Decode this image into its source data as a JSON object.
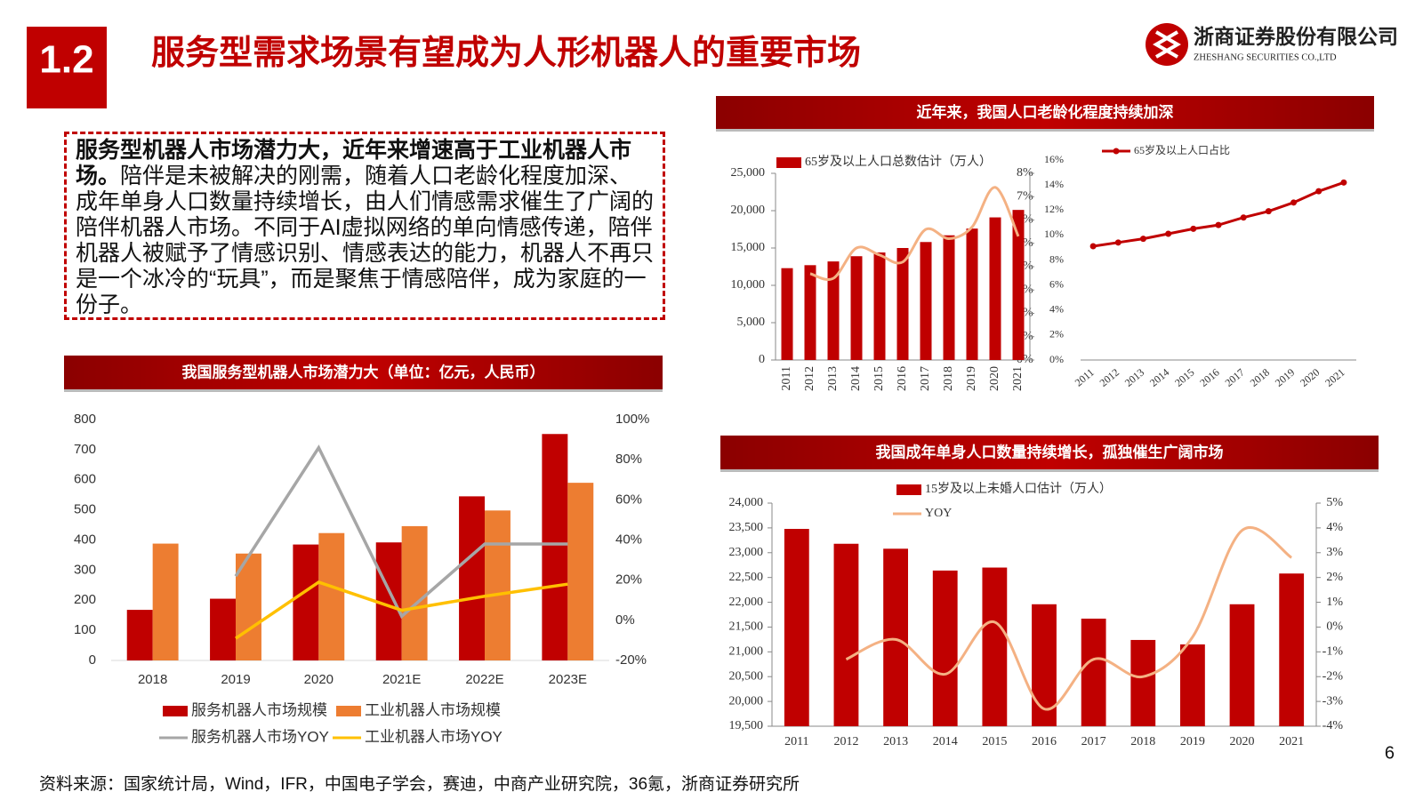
{
  "header": {
    "section": "1.2",
    "title": "服务型需求场景有望成为人形机器人的重要市场",
    "company": "浙商证券股份有限公司",
    "company_en": "ZHESHANG SECURITIES CO.,LTD"
  },
  "text_box": {
    "bold": "服务型机器人市场潜力大，近年来增速高于工业机器人市场。",
    "body": "陪伴是未被解决的刚需，随着人口老龄化程度加深、成年单身人口数量持续增长，由人们情感需求催生了广阔的陪伴机器人市场。不同于AI虚拟网络的单向情感传递，陪伴机器人被赋予了情感识别、情感表达的能力，机器人不再只是一个冰冷的“玩具”，而是聚焦于情感陪伴，成为家庭的一份子。"
  },
  "footer": {
    "source": "资料来源：国家统计局，Wind，IFR，中国电子学会，赛迪，中商产业研究院，36氪，浙商证券研究所",
    "page": "6"
  },
  "chart_data": [
    {
      "type": "combo",
      "title": "我国服务型机器人市场潜力大（单位：亿元，人民币）",
      "categories": [
        "2018",
        "2019",
        "2020",
        "2021E",
        "2022E",
        "2023E"
      ],
      "series": [
        {
          "name": "服务机器人市场规模",
          "type": "bar",
          "color": "#c00000",
          "values": [
            168,
            205,
            385,
            392,
            545,
            752
          ]
        },
        {
          "name": "工业机器人市场规模",
          "type": "bar",
          "color": "#ed7d31",
          "values": [
            388,
            355,
            423,
            446,
            498,
            590
          ]
        },
        {
          "name": "服务机器人市场YOY",
          "type": "line",
          "axis": "y2",
          "color": "#a6a6a6",
          "values": [
            null,
            22,
            86,
            2,
            38,
            38
          ]
        },
        {
          "name": "工业机器人市场YOY",
          "type": "line",
          "axis": "y2",
          "color": "#ffc000",
          "values": [
            null,
            -9,
            19,
            5,
            12,
            18
          ]
        }
      ],
      "ylim": [
        0,
        800
      ],
      "yticks": [
        0,
        100,
        200,
        300,
        400,
        500,
        600,
        700,
        800
      ],
      "y2lim": [
        -20,
        100
      ],
      "y2ticks": [
        {
          "value": -20,
          "label": "-20%"
        },
        {
          "value": 0,
          "label": "0%"
        },
        {
          "value": 20,
          "label": "20%"
        },
        {
          "value": 40,
          "label": "40%"
        },
        {
          "value": 60,
          "label": "60%"
        },
        {
          "value": 80,
          "label": "80%"
        },
        {
          "value": 100,
          "label": "100%"
        }
      ],
      "legend": "bottom",
      "smooth": false
    },
    {
      "type": "combo",
      "title": "近年来，我国人口老龄化程度持续加深",
      "categories": [
        "2011",
        "2012",
        "2013",
        "2014",
        "2015",
        "2016",
        "2017",
        "2018",
        "2019",
        "2020",
        "2021"
      ],
      "series": [
        {
          "name": "65岁及以上人口总数估计（万人）",
          "type": "bar",
          "color": "#c00000",
          "values": [
            12300,
            12700,
            13200,
            13900,
            14400,
            15000,
            15800,
            16700,
            17600,
            19100,
            20100
          ]
        },
        {
          "type": "line",
          "axis": "y2",
          "color": "#f4b183",
          "values": [
            null,
            3.7,
            3.5,
            4.8,
            4.5,
            4.2,
            5.6,
            5.2,
            5.7,
            7.4,
            5.3
          ]
        }
      ],
      "ylim": [
        0,
        25000
      ],
      "yticks": [
        0,
        {
          "value": 5000,
          "label": "5,000"
        },
        {
          "value": 10000,
          "label": "10,000"
        },
        {
          "value": 15000,
          "label": "15,000"
        },
        {
          "value": 20000,
          "label": "20,000"
        },
        {
          "value": 25000,
          "label": "25,000"
        }
      ],
      "y2lim": [
        0,
        8
      ],
      "y2ticks": [
        {
          "value": 0,
          "label": "0%"
        },
        {
          "value": 1,
          "label": "1%"
        },
        {
          "value": 2,
          "label": "2%"
        },
        {
          "value": 3,
          "label": "3%"
        },
        {
          "value": 4,
          "label": "4%"
        },
        {
          "value": 5,
          "label": "5%"
        },
        {
          "value": 6,
          "label": "6%"
        },
        {
          "value": 7,
          "label": "7%"
        },
        {
          "value": 8,
          "label": "8%"
        }
      ],
      "legend": "upper left",
      "smooth": true
    },
    {
      "type": "line",
      "categories": [
        "2011",
        "2012",
        "2013",
        "2014",
        "2015",
        "2016",
        "2017",
        "2018",
        "2019",
        "2020",
        "2021"
      ],
      "series": [
        {
          "name": "65岁及以上人口占比",
          "type": "line",
          "color": "#c00000",
          "values": [
            9.1,
            9.4,
            9.7,
            10.1,
            10.5,
            10.8,
            11.4,
            11.9,
            12.6,
            13.5,
            14.2
          ]
        }
      ],
      "ylim": [
        0,
        16
      ],
      "yticks": [
        {
          "value": 0,
          "label": "0%"
        },
        {
          "value": 2,
          "label": "2%"
        },
        {
          "value": 4,
          "label": "4%"
        },
        {
          "value": 6,
          "label": "6%"
        },
        {
          "value": 8,
          "label": "8%"
        },
        {
          "value": 10,
          "label": "10%"
        },
        {
          "value": 12,
          "label": "12%"
        },
        {
          "value": 14,
          "label": "14%"
        },
        {
          "value": 16,
          "label": "16%"
        }
      ],
      "legend": "upper center",
      "markers": true,
      "smooth": false
    },
    {
      "type": "combo",
      "title": "我国成年单身人口数量持续增长，孤独催生广阔市场",
      "categories": [
        "2011",
        "2012",
        "2013",
        "2014",
        "2015",
        "2016",
        "2017",
        "2018",
        "2019",
        "2020",
        "2021"
      ],
      "series": [
        {
          "name": "15岁及以上未婚人口估计（万人）",
          "type": "bar",
          "color": "#c00000",
          "values": [
            23480,
            23180,
            23080,
            22640,
            22700,
            21960,
            21670,
            21240,
            21150,
            21960,
            22580
          ]
        },
        {
          "name": "YOY",
          "type": "line",
          "axis": "y2",
          "color": "#f4b183",
          "values": [
            null,
            -1.3,
            -0.5,
            -1.9,
            0.2,
            -3.3,
            -1.3,
            -2.0,
            -0.4,
            3.9,
            2.8
          ]
        }
      ],
      "ylim": [
        19500,
        24000
      ],
      "yticks": [
        {
          "value": 19500,
          "label": "19,500"
        },
        {
          "value": 20000,
          "label": "20,000"
        },
        {
          "value": 20500,
          "label": "20,500"
        },
        {
          "value": 21000,
          "label": "21,000"
        },
        {
          "value": 21500,
          "label": "21,500"
        },
        {
          "value": 22000,
          "label": "22,000"
        },
        {
          "value": 22500,
          "label": "22,500"
        },
        {
          "value": 23000,
          "label": "23,000"
        },
        {
          "value": 23500,
          "label": "23,500"
        },
        {
          "value": 24000,
          "label": "24,000"
        }
      ],
      "y2lim": [
        -4,
        5
      ],
      "y2ticks": [
        {
          "value": -4,
          "label": "-4%"
        },
        {
          "value": -3,
          "label": "-3%"
        },
        {
          "value": -2,
          "label": "-2%"
        },
        {
          "value": -1,
          "label": "-1%"
        },
        {
          "value": 0,
          "label": "0%"
        },
        {
          "value": 1,
          "label": "1%"
        },
        {
          "value": 2,
          "label": "2%"
        },
        {
          "value": 3,
          "label": "3%"
        },
        {
          "value": 4,
          "label": "4%"
        },
        {
          "value": 5,
          "label": "5%"
        }
      ],
      "legend": "upper center",
      "smooth": true
    }
  ]
}
